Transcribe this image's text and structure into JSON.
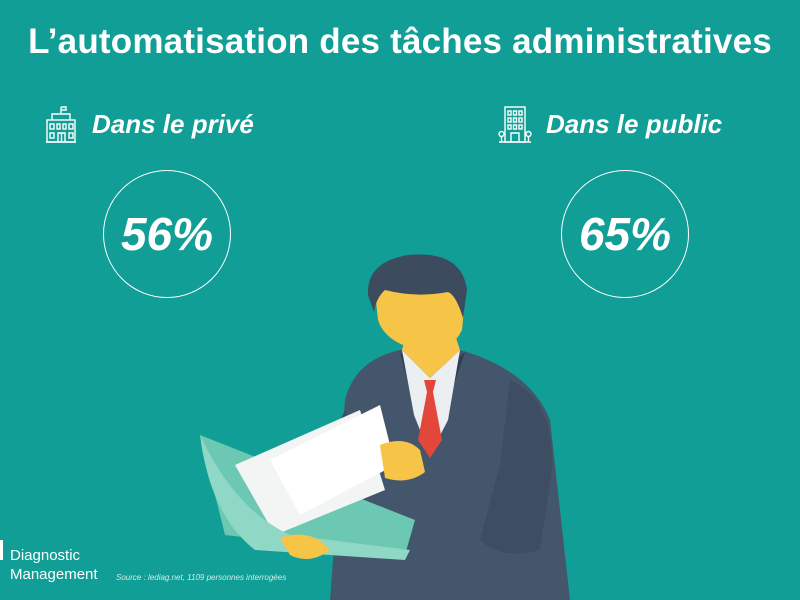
{
  "header": {
    "title": "L’automatisation des tâches administratives"
  },
  "stats": {
    "private": {
      "label": "Dans le privé",
      "value": "56%",
      "icon": "building-icon"
    },
    "public": {
      "label": "Dans le public",
      "value": "65%",
      "icon": "office-building-icon"
    }
  },
  "footer": {
    "logo_line1": "Diagnostic",
    "logo_line2": "Management",
    "source": "Source : lediag.net, 1109 personnes interrogées"
  },
  "colors": {
    "background": "#119e96",
    "text": "#ffffff"
  }
}
